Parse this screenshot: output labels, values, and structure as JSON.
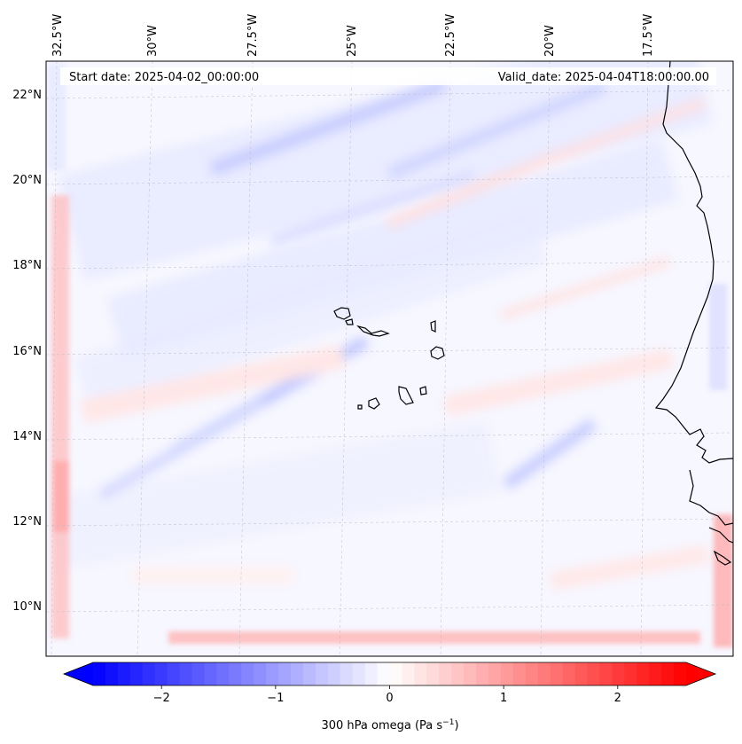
{
  "map": {
    "start_date_label": "Start date: 2025-04-02_00:00:00",
    "valid_date_label": "Valid_date: 2025-04-04T18:00:00.00",
    "lon_labels": [
      "32.5°W",
      "30°W",
      "27.5°W",
      "25°W",
      "22.5°W",
      "20°W",
      "17.5°W"
    ],
    "lat_labels": [
      "22°N",
      "20°N",
      "18°N",
      "16°N",
      "14°N",
      "12°N",
      "10°N"
    ],
    "gridlines": true,
    "coastline_color": "#000000",
    "features": [
      "Cape Verde islands",
      "West African coastline"
    ]
  },
  "colorbar": {
    "label": "300 hPa omega (Pa s",
    "label_sup": "−1",
    "label_close": ")",
    "ticks": [
      -2,
      -1,
      0,
      1,
      2
    ],
    "tick_labels": [
      "−2",
      "−1",
      "0",
      "1",
      "2"
    ],
    "range": [
      -2.6,
      2.6
    ],
    "colormap": "bwr",
    "colors": {
      "low": "#0000ff",
      "mid": "#ffffff",
      "high": "#ff0000"
    },
    "extend": "both"
  }
}
